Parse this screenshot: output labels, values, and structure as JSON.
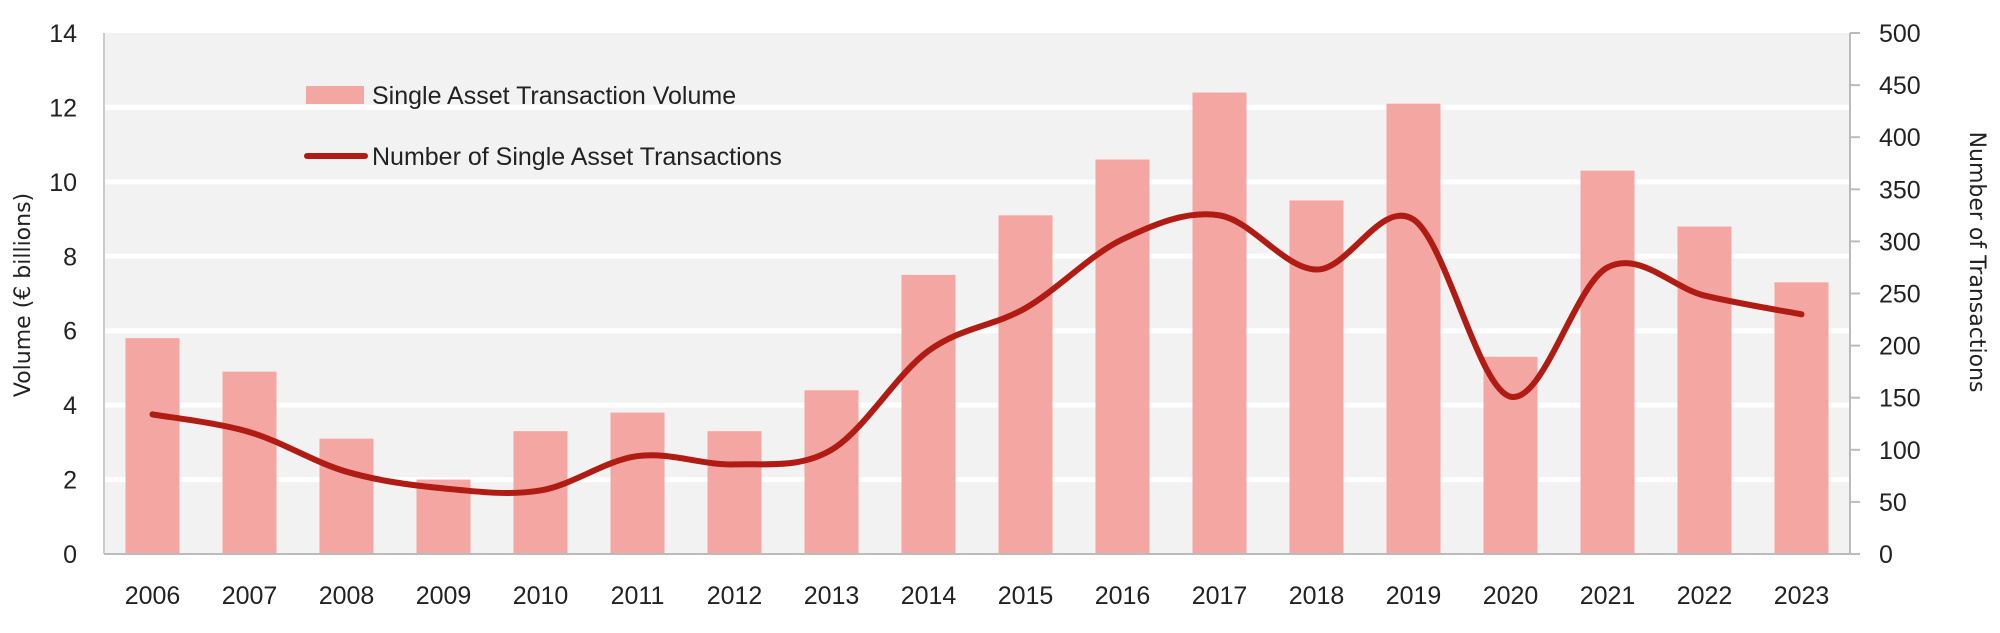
{
  "chart_data": {
    "type": "bar+line",
    "categories": [
      "2006",
      "2007",
      "2008",
      "2009",
      "2010",
      "2011",
      "2012",
      "2013",
      "2014",
      "2015",
      "2016",
      "2017",
      "2018",
      "2019",
      "2020",
      "2021",
      "2022",
      "2023"
    ],
    "series": [
      {
        "name": "Single Asset Transaction Volume",
        "type": "bar",
        "axis": "left",
        "color": "#f4a6a3",
        "values": [
          5.8,
          4.9,
          3.1,
          2.0,
          3.3,
          3.8,
          3.3,
          4.4,
          7.5,
          9.1,
          10.6,
          12.4,
          9.5,
          12.1,
          5.3,
          10.3,
          8.8,
          7.3
        ]
      },
      {
        "name": "Number of Single Asset Transactions",
        "type": "line",
        "axis": "right",
        "color": "#b01c14",
        "smooth": true,
        "values": [
          134,
          117,
          79,
          63,
          61,
          94,
          86,
          100,
          195,
          236,
          302,
          325,
          273,
          321,
          151,
          275,
          248,
          230
        ]
      }
    ],
    "ylabel": "Volume (€ billions)",
    "ylabel_right": "Number of Transactions",
    "ylim": [
      0,
      14
    ],
    "yticks": [
      "0",
      "2",
      "4",
      "6",
      "8",
      "10",
      "12",
      "14"
    ],
    "ylim_right": [
      0,
      500
    ],
    "yticks_right": [
      "0",
      "50",
      "100",
      "150",
      "200",
      "250",
      "300",
      "350",
      "400",
      "450",
      "500"
    ],
    "grid": true,
    "plot_background": "#f2f2f2",
    "legend_position": "top-left"
  }
}
